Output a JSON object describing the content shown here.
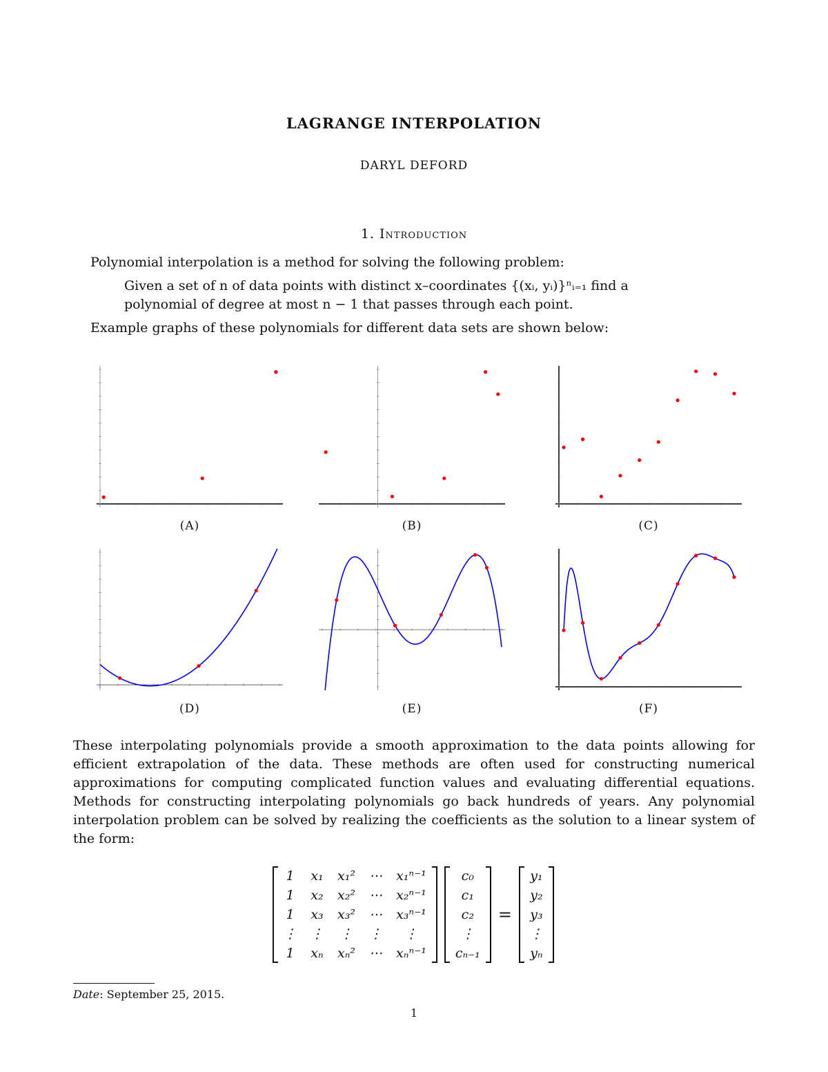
{
  "title": "LAGRANGE INTERPOLATION",
  "author": "DARYL DEFORD",
  "section": "1. Introduction",
  "p1": "Polynomial interpolation is a method for solving the following problem:",
  "quote": "Given a set of n of data points with distinct x–coordinates {(xᵢ, yᵢ)}ⁿᵢ₌₁ find a polynomial of degree at most n − 1 that passes through each point.",
  "p2": "Example graphs of these polynomials for different data sets are shown below:",
  "p3": "These interpolating polynomials provide a smooth approximation to the data points allowing for efficient extrapolation of the data. These methods are often used for constructing numerical approximations for computing complicated function values and evaluating differential equations. Methods for constructing interpolating polynomials go back hundreds of years. Any polynomial interpolation problem can be solved by realizing the coefficients as the solution to a linear system of the form:",
  "matrix": {
    "A": [
      [
        "1",
        "x₁",
        "x₁²",
        "⋯",
        "x₁ⁿ⁻¹"
      ],
      [
        "1",
        "x₂",
        "x₂²",
        "⋯",
        "x₂ⁿ⁻¹"
      ],
      [
        "1",
        "x₃",
        "x₃²",
        "⋯",
        "x₃ⁿ⁻¹"
      ],
      [
        "⋮",
        "⋮",
        "⋮",
        "⋮",
        "⋮"
      ],
      [
        "1",
        "xₙ",
        "xₙ²",
        "⋯",
        "xₙⁿ⁻¹"
      ]
    ],
    "c": [
      "c₀",
      "c₁",
      "c₂",
      "⋮",
      "cₙ₋₁"
    ],
    "eq": "=",
    "y": [
      "y₁",
      "y₂",
      "y₃",
      "⋮",
      "yₙ"
    ]
  },
  "footnote": {
    "label": "Date",
    "text": ": September 25, 2015."
  },
  "page_number": "1",
  "colors": {
    "points": "#ff0000",
    "curve": "#0000ff",
    "axis": "#000000"
  },
  "chart_data": [
    {
      "caption": "(A)",
      "type": "scatter",
      "xlim": [
        0,
        10
      ],
      "ylim": [
        0,
        10
      ],
      "x": [
        0.2,
        5.7,
        9.8
      ],
      "y": [
        0.5,
        1.9,
        9.8
      ],
      "yaxis_at": 0,
      "xaxis_at": 0,
      "curve": false
    },
    {
      "caption": "(B)",
      "type": "scatter",
      "xlim": [
        0,
        10
      ],
      "ylim": [
        0,
        10
      ],
      "x": [
        0.2,
        3.9,
        6.8,
        9.1,
        9.8
      ],
      "y": [
        3.85,
        0.55,
        1.9,
        9.8,
        8.15
      ],
      "yaxis_at": 3.1,
      "xaxis_at": 0,
      "curve": false
    },
    {
      "caption": "(C)",
      "type": "scatter",
      "xlim": [
        0,
        10
      ],
      "ylim": [
        0,
        10
      ],
      "x": [
        0.27,
        1.33,
        2.36,
        3.42,
        4.49,
        5.55,
        6.62,
        7.64,
        8.71,
        9.77
      ],
      "y": [
        4.2,
        4.8,
        0.55,
        2.1,
        3.25,
        4.6,
        7.7,
        9.85,
        9.65,
        8.2
      ],
      "yaxis_at": 0,
      "xaxis_at": 0,
      "curve": false
    },
    {
      "caption": "(D)",
      "type": "line",
      "xlim": [
        0,
        10
      ],
      "ylim": [
        0,
        10
      ],
      "x": [
        1.1,
        5.5,
        8.7
      ],
      "y": [
        0.65,
        1.55,
        7.15
      ],
      "yaxis_at": 0,
      "xaxis_at": 0.15,
      "curve": true
    },
    {
      "caption": "(E)",
      "type": "line",
      "xlim": [
        0,
        10
      ],
      "ylim": [
        0,
        10
      ],
      "x": [
        0.8,
        4.06,
        6.63,
        8.52,
        9.17
      ],
      "y": [
        6.45,
        4.55,
        5.35,
        9.8,
        8.85
      ],
      "yaxis_at": 3.1,
      "xaxis_at": 4.25,
      "curve": true
    },
    {
      "caption": "(F)",
      "type": "line",
      "xlim": [
        0,
        10
      ],
      "ylim": [
        0,
        10
      ],
      "x": [
        0.27,
        1.33,
        2.36,
        3.42,
        4.49,
        5.55,
        6.62,
        7.64,
        8.71,
        9.77
      ],
      "y": [
        4.2,
        4.75,
        0.6,
        2.15,
        3.25,
        4.6,
        7.65,
        9.75,
        9.55,
        8.15
      ],
      "yaxis_at": 0,
      "xaxis_at": 0,
      "curve": true
    }
  ]
}
